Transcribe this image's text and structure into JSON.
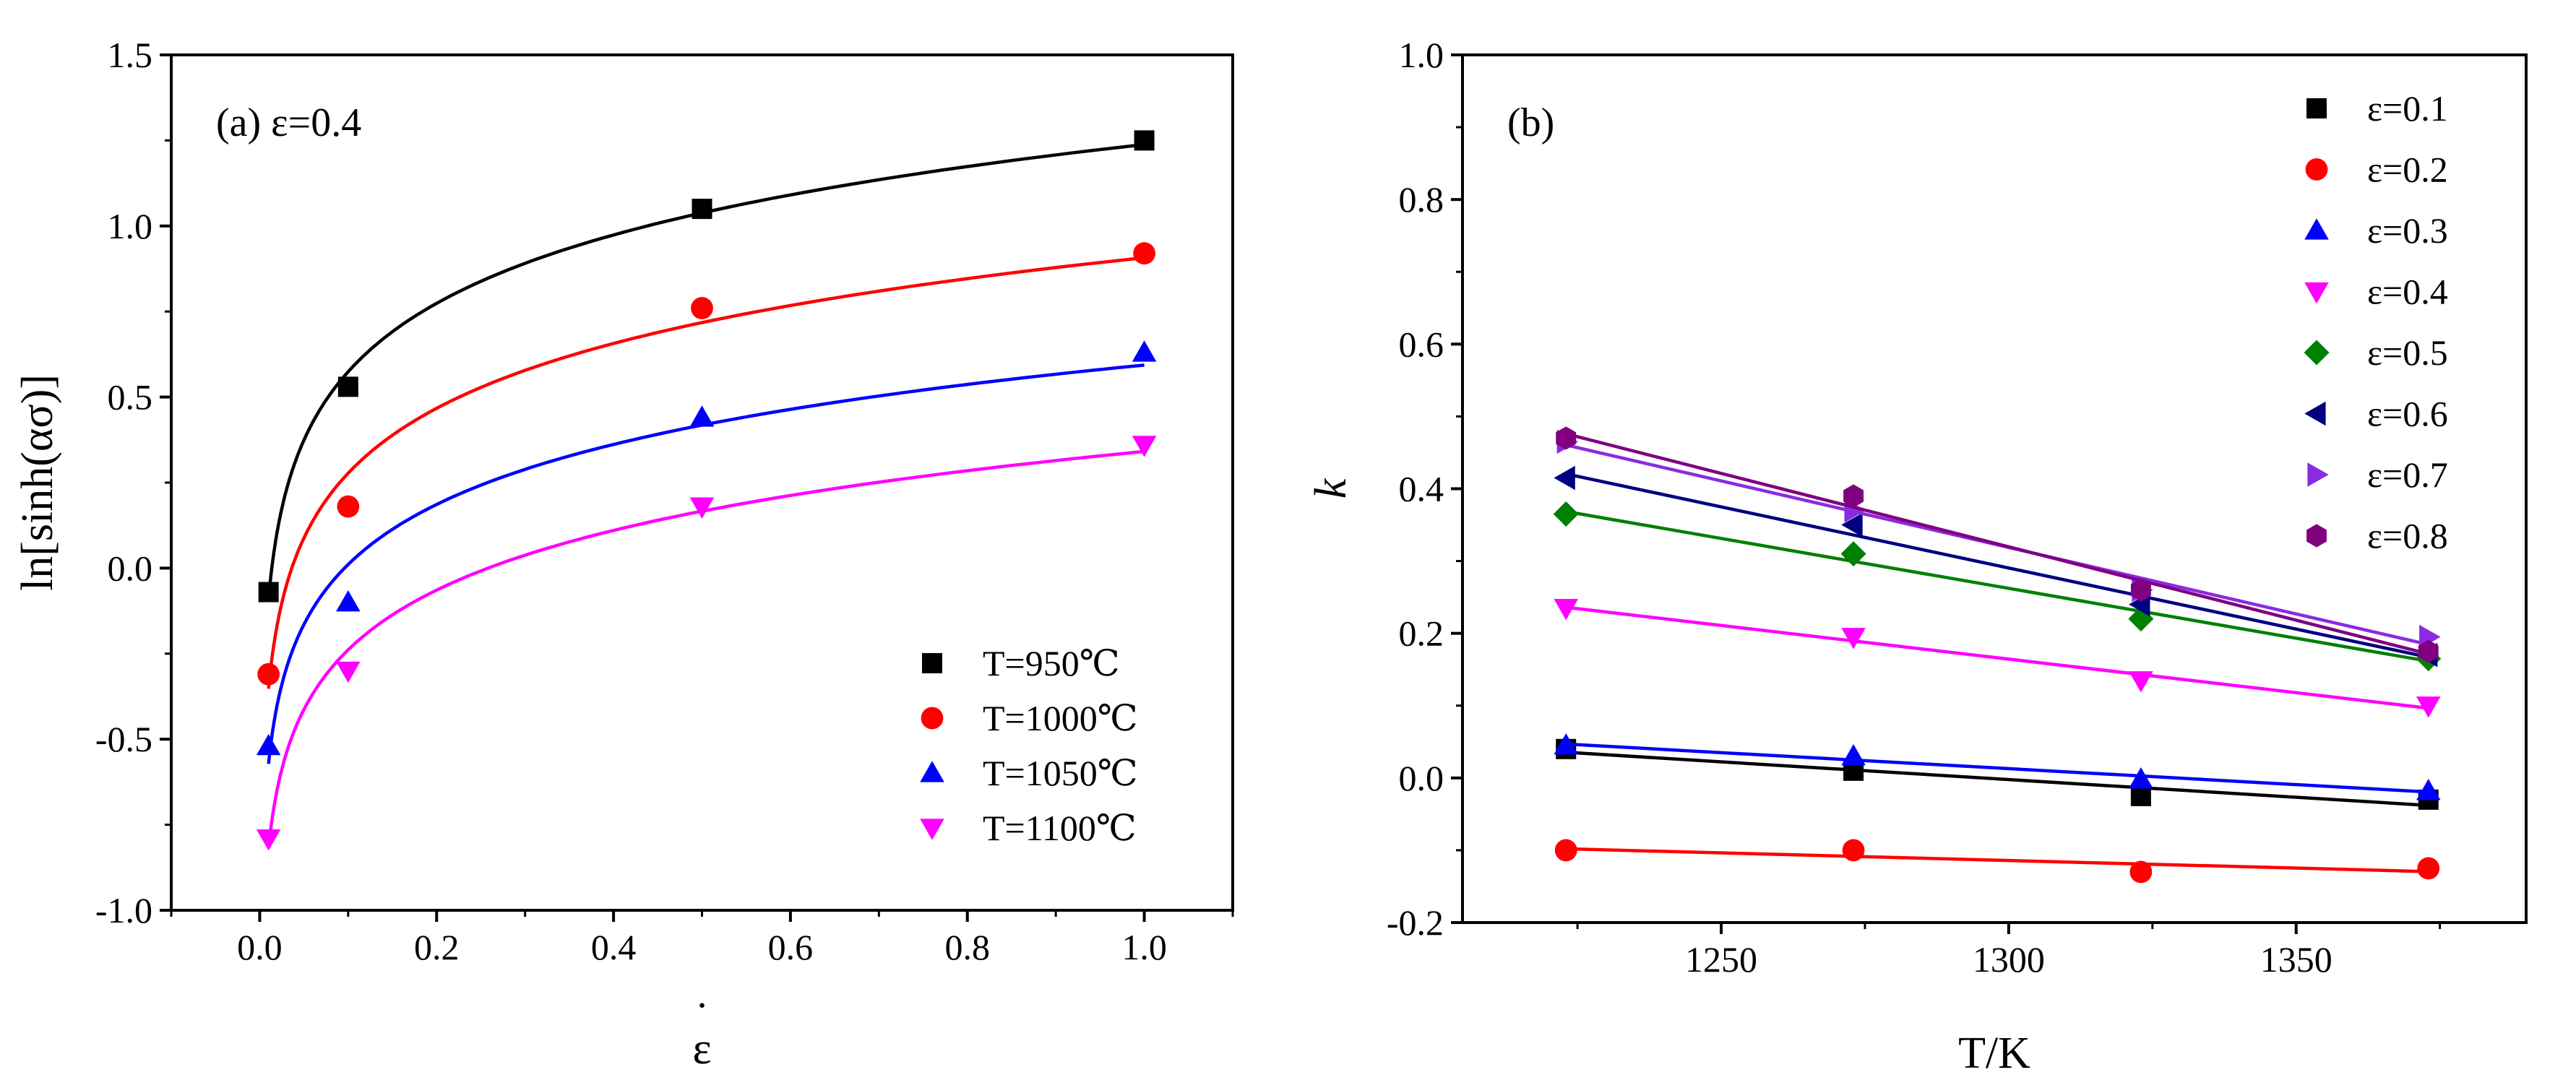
{
  "chart_data": [
    {
      "id": "a",
      "type": "scatter",
      "panel_label": "(a) ε=0.4",
      "xlabel": "ε",
      "xlabel_dot": "˙",
      "ylabel": "ln[sinh(ασ)]",
      "xlim": [
        -0.1,
        1.1
      ],
      "ylim": [
        -1.0,
        1.5
      ],
      "xticks": [
        0.0,
        0.2,
        0.4,
        0.6,
        0.8,
        1.0
      ],
      "xtick_labels": [
        "0.0",
        "0.2",
        "0.4",
        "0.6",
        "0.8",
        "1.0"
      ],
      "yticks": [
        -1.0,
        -0.5,
        0.0,
        0.5,
        1.0,
        1.5
      ],
      "ytick_labels": [
        "-1.0",
        "-0.5",
        "0.0",
        "0.5",
        "1.0",
        "1.5"
      ],
      "legend_position": "bottom-right",
      "fit": "logarithmic",
      "series": [
        {
          "name": "T=950℃",
          "label": "T=950℃",
          "color": "#000000",
          "marker": "square",
          "x": [
            0.01,
            0.1,
            0.5,
            1.0
          ],
          "y": [
            -0.07,
            0.53,
            1.05,
            1.25
          ]
        },
        {
          "name": "T=1000℃",
          "label": "T=1000℃",
          "color": "#ff0000",
          "marker": "circle",
          "x": [
            0.01,
            0.1,
            0.5,
            1.0
          ],
          "y": [
            -0.31,
            0.18,
            0.76,
            0.92
          ]
        },
        {
          "name": "T=1050℃",
          "label": "T=1050℃",
          "color": "#0000ff",
          "marker": "triangle-up",
          "x": [
            0.01,
            0.1,
            0.5,
            1.0
          ],
          "y": [
            -0.52,
            -0.1,
            0.44,
            0.63
          ]
        },
        {
          "name": "T=1100℃",
          "label": "T=1100℃",
          "color": "#ff00ff",
          "marker": "triangle-down",
          "x": [
            0.01,
            0.1,
            0.5,
            1.0
          ],
          "y": [
            -0.79,
            -0.3,
            0.18,
            0.36
          ]
        }
      ]
    },
    {
      "id": "b",
      "type": "scatter",
      "panel_label": "(b)",
      "xlabel": "T/K",
      "ylabel": "k",
      "xlim": [
        1205,
        1390
      ],
      "ylim": [
        -0.2,
        1.0
      ],
      "xticks": [
        1250,
        1300,
        1350
      ],
      "xtick_labels": [
        "1250",
        "1300",
        "1350"
      ],
      "yticks": [
        -0.2,
        0.0,
        0.2,
        0.4,
        0.6,
        0.8,
        1.0
      ],
      "ytick_labels": [
        "-0.2",
        "0.0",
        "0.2",
        "0.4",
        "0.6",
        "0.8",
        "1.0"
      ],
      "legend_position": "top-right",
      "fit": "linear",
      "x": [
        1223,
        1273,
        1323,
        1373
      ],
      "series": [
        {
          "name": "ε=0.1",
          "label": "ε=0.1",
          "color": "#000000",
          "marker": "square",
          "y": [
            0.04,
            0.01,
            -0.025,
            -0.03
          ]
        },
        {
          "name": "ε=0.2",
          "label": "ε=0.2",
          "color": "#ff0000",
          "marker": "circle",
          "y": [
            -0.1,
            -0.1,
            -0.13,
            -0.125
          ]
        },
        {
          "name": "ε=0.3",
          "label": "ε=0.3",
          "color": "#0000ff",
          "marker": "triangle-up",
          "y": [
            0.045,
            0.03,
            -0.002,
            -0.018
          ]
        },
        {
          "name": "ε=0.4",
          "label": "ε=0.4",
          "color": "#ff00ff",
          "marker": "triangle-down",
          "y": [
            0.235,
            0.195,
            0.135,
            0.1
          ]
        },
        {
          "name": "ε=0.5",
          "label": "ε=0.5",
          "color": "#008000",
          "marker": "diamond",
          "y": [
            0.365,
            0.31,
            0.22,
            0.165
          ]
        },
        {
          "name": "ε=0.6",
          "label": "ε=0.6",
          "color": "#000080",
          "marker": "triangle-left",
          "y": [
            0.415,
            0.35,
            0.24,
            0.17
          ]
        },
        {
          "name": "ε=0.7",
          "label": "ε=0.7",
          "color": "#8a2be2",
          "marker": "triangle-right",
          "y": [
            0.465,
            0.37,
            0.26,
            0.195
          ]
        },
        {
          "name": "ε=0.8",
          "label": "ε=0.8",
          "color": "#800080",
          "marker": "hexagon",
          "y": [
            0.47,
            0.39,
            0.26,
            0.175
          ]
        }
      ]
    }
  ]
}
